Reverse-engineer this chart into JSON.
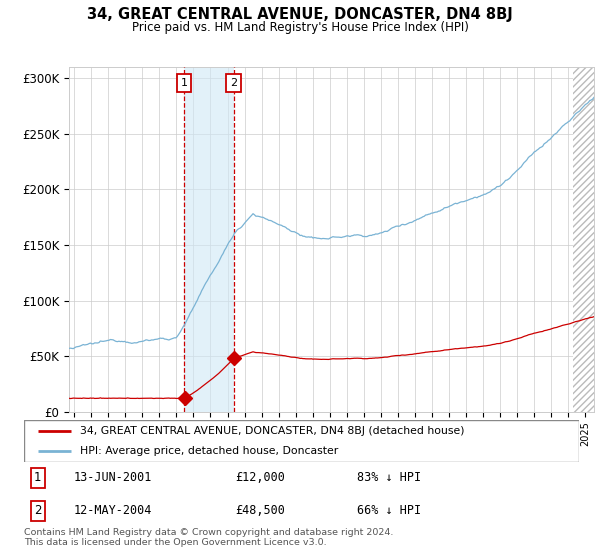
{
  "title": "34, GREAT CENTRAL AVENUE, DONCASTER, DN4 8BJ",
  "subtitle": "Price paid vs. HM Land Registry's House Price Index (HPI)",
  "hpi_color": "#7ab3d4",
  "price_color": "#cc0000",
  "background_color": "#ffffff",
  "grid_color": "#cccccc",
  "ylim": [
    0,
    310000
  ],
  "yticks": [
    0,
    50000,
    100000,
    150000,
    200000,
    250000,
    300000
  ],
  "ytick_labels": [
    "£0",
    "£50K",
    "£100K",
    "£150K",
    "£200K",
    "£250K",
    "£300K"
  ],
  "sale1_date_num": 2001.45,
  "sale1_price": 12000,
  "sale1_label": "1",
  "sale1_date_str": "13-JUN-2001",
  "sale1_price_str": "£12,000",
  "sale1_pct": "83% ↓ HPI",
  "sale2_date_num": 2004.37,
  "sale2_price": 48500,
  "sale2_label": "2",
  "sale2_date_str": "12-MAY-2004",
  "sale2_price_str": "£48,500",
  "sale2_pct": "66% ↓ HPI",
  "legend_line1": "34, GREAT CENTRAL AVENUE, DONCASTER, DN4 8BJ (detached house)",
  "legend_line2": "HPI: Average price, detached house, Doncaster",
  "footnote": "Contains HM Land Registry data © Crown copyright and database right 2024.\nThis data is licensed under the Open Government Licence v3.0.",
  "xlim_start": 1994.7,
  "xlim_end": 2025.5,
  "hatch_start": 2024.25
}
